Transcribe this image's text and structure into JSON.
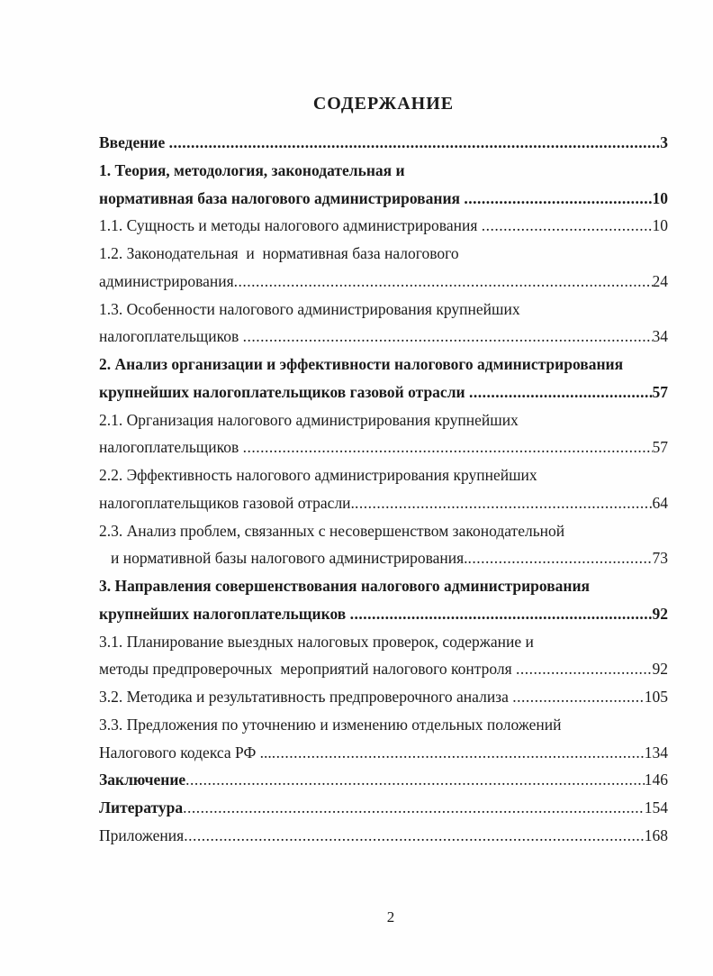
{
  "title": "СОДЕРЖАНИЕ",
  "page_footer": {
    "number": "2"
  },
  "toc": {
    "leader_dots": "....................................................................................................................................................................................................................................................................",
    "entries": [
      {
        "label": "Введение ",
        "page": "3"
      },
      {
        "label": "1. Теория, методология, законодательная и"
      },
      {
        "label": "нормативная база налогового администрирования ",
        "page": "10"
      },
      {
        "label": "1.1. Сущность и методы налогового администрирования ",
        "page": "10"
      },
      {
        "label": "1.2. Законодательная  и  нормативная база налогового"
      },
      {
        "label": "администрирования",
        "page": "24"
      },
      {
        "label": "1.3. Особенности налогового администрирования крупнейших"
      },
      {
        "label": "налогоплательщиков ",
        "page": "34"
      },
      {
        "label": "2. Анализ организации и эффективности налогового администрирования"
      },
      {
        "label": "крупнейших налогоплательщиков газовой отрасли ",
        "page": "57"
      },
      {
        "label": "2.1. Организация налогового администрирования крупнейших"
      },
      {
        "label": "налогоплательщиков ",
        "page": "57"
      },
      {
        "label": "2.2. Эффективность налогового администрирования крупнейших"
      },
      {
        "label": "налогоплательщиков газовой отрасли.",
        "page": "64"
      },
      {
        "label": "2.3. Анализ проблем, связанных с несовершенством законодательной"
      },
      {
        "label": "и нормативной базы налогового администрирования.",
        "page": "73"
      },
      {
        "label": "3. Направления совершенствования налогового администрирования"
      },
      {
        "label": "крупнейших налогоплательщиков ",
        "page": "92"
      },
      {
        "label": "3.1. Планирование выездных налоговых проверок, содержание и"
      },
      {
        "label": "методы предпроверочных  мероприятий налогового контроля ",
        "page": "92"
      },
      {
        "label": "3.2. Методика и результативность предпроверочного анализа ",
        "page": "105"
      },
      {
        "label": "3.3. Предложения по уточнению и изменению отдельных положений"
      },
      {
        "label": "Налогового кодекса РФ ...",
        "page": "134"
      },
      {
        "label": "Заключение",
        "page": "146"
      },
      {
        "label": "Литература",
        "page": "154"
      },
      {
        "label": "Приложения",
        "page": "168"
      }
    ]
  }
}
